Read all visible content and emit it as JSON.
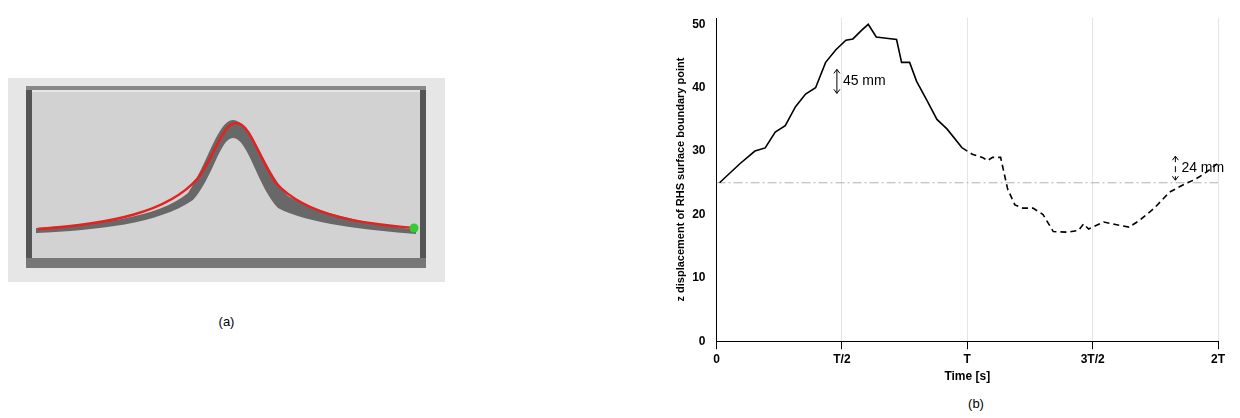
{
  "panel_labels": [
    "(a)",
    "(b)"
  ],
  "chart_data": {
    "type": "line",
    "x_label": "Time [s]",
    "y_label": "z displacement of RHS surface boundary point",
    "xlim": [
      0,
      2
    ],
    "xticks": [
      0,
      {
        "value": 0.5,
        "label": "T/2"
      },
      {
        "value": 1,
        "label": "T"
      },
      {
        "value": 1.5,
        "label": "3T/2"
      },
      {
        "value": 2,
        "label": "2T"
      }
    ],
    "ylim": [
      0,
      51
    ],
    "yticks": [
      0,
      10,
      20,
      30,
      40,
      50
    ],
    "grid": "x",
    "series": [
      {
        "color": "#000000",
        "line_style": "solid",
        "x": [
          0.012,
          0.093,
          0.153,
          0.194,
          0.234,
          0.274,
          0.315,
          0.355,
          0.395,
          0.435,
          0.476,
          0.516,
          0.544,
          0.577,
          0.605,
          0.637,
          0.677,
          0.718,
          0.738,
          0.77,
          0.798,
          0.839,
          0.879,
          0.919,
          0.98
        ],
        "values": [
          25,
          28,
          30,
          30.5,
          33,
          34,
          37,
          39,
          40,
          44,
          46,
          47.5,
          47.7,
          49,
          50,
          48,
          47.8,
          47.6,
          44,
          44,
          41,
          38,
          35,
          33.5,
          30.5
        ]
      },
      {
        "color": "#000000",
        "line_style": "dashed",
        "x": [
          0.98,
          1.02,
          1.06,
          1.081,
          1.101,
          1.133,
          1.161,
          1.19,
          1.222,
          1.262,
          1.302,
          1.343,
          1.403,
          1.444,
          1.464,
          1.484,
          1.544,
          1.605,
          1.645,
          1.685,
          1.746,
          1.806,
          1.867,
          1.907,
          1.948,
          1.996
        ],
        "values": [
          30.5,
          29.5,
          29,
          28.5,
          29,
          29,
          24,
          21.5,
          21,
          21,
          20,
          17.3,
          17.2,
          17.5,
          18.5,
          17.7,
          18.8,
          18.3,
          18,
          19,
          21,
          23.5,
          24.8,
          25.5,
          26.5,
          28
        ]
      },
      {
        "color": "#b0b0b0",
        "line_style": "dashdot",
        "x": [
          0,
          2
        ],
        "values": [
          25,
          25
        ]
      }
    ],
    "annotations": [
      {
        "text": "45 mm",
        "x": 0.48,
        "y": 41,
        "line_style": "solid"
      },
      {
        "text": "24 mm",
        "x": 1.83,
        "y": 27.3,
        "line_style": "dashed"
      }
    ]
  }
}
